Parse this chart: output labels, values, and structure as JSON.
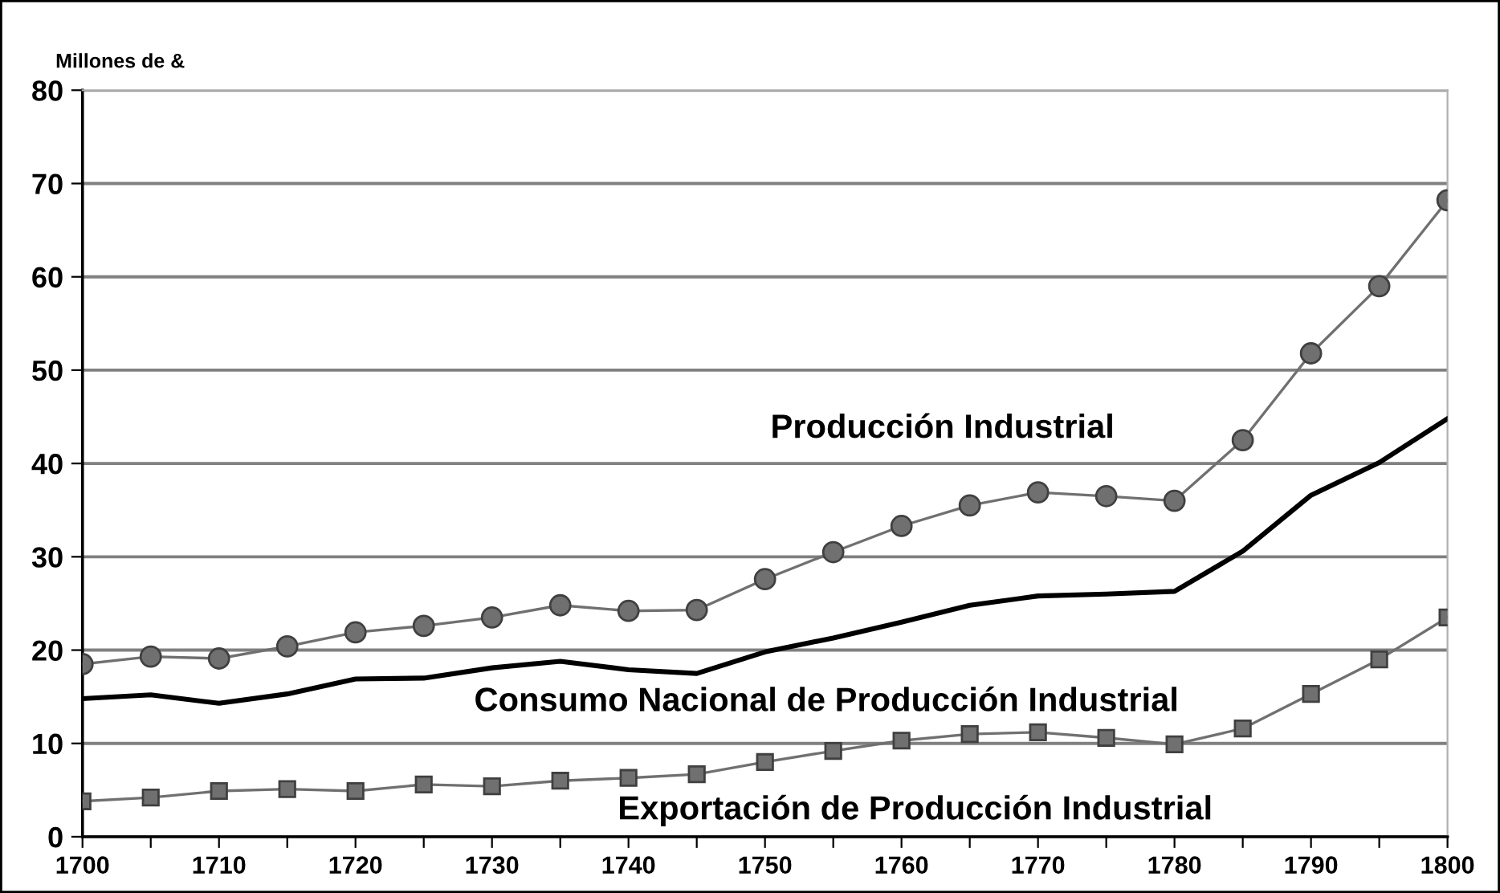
{
  "chart_data": {
    "type": "line",
    "ylabel": "Millones de &",
    "x": [
      1700,
      1705,
      1710,
      1715,
      1720,
      1725,
      1730,
      1735,
      1740,
      1745,
      1750,
      1755,
      1760,
      1765,
      1770,
      1775,
      1780,
      1785,
      1790,
      1795,
      1800
    ],
    "series": [
      {
        "name": "Producción Industrial",
        "color": "#707070",
        "marker": "circle",
        "values": [
          18.5,
          19.3,
          19.1,
          20.4,
          21.9,
          22.6,
          23.5,
          24.8,
          24.2,
          24.3,
          27.6,
          30.5,
          33.3,
          35.5,
          36.9,
          36.5,
          36.0,
          42.5,
          51.8,
          59.0,
          68.2
        ]
      },
      {
        "name": "Consumo Nacional de Producción Industrial",
        "color": "#000000",
        "marker": "none",
        "values": [
          14.8,
          15.2,
          14.3,
          15.3,
          16.9,
          17.0,
          18.1,
          18.8,
          17.9,
          17.5,
          19.8,
          21.3,
          23.0,
          24.8,
          25.8,
          26.0,
          26.3,
          30.6,
          36.6,
          40.1,
          44.8
        ]
      },
      {
        "name": "Exportación de Producción Industrial",
        "color": "#707070",
        "marker": "square",
        "values": [
          3.8,
          4.2,
          4.9,
          5.1,
          4.9,
          5.6,
          5.4,
          6.0,
          6.3,
          6.7,
          8.0,
          9.2,
          10.3,
          11.0,
          11.2,
          10.6,
          9.9,
          11.6,
          15.3,
          19.0,
          23.5
        ]
      }
    ],
    "xlim": [
      1700,
      1800
    ],
    "xticks": [
      1700,
      {
        "value": 1705,
        "label": null
      },
      1710,
      {
        "value": 1715,
        "label": null
      },
      1720,
      {
        "value": 1725,
        "label": null
      },
      1730,
      {
        "value": 1735,
        "label": null
      },
      1740,
      {
        "value": 1745,
        "label": null
      },
      1750,
      {
        "value": 1755,
        "label": null
      },
      1760,
      {
        "value": 1765,
        "label": null
      },
      1770,
      {
        "value": 1775,
        "label": null
      },
      1780,
      {
        "value": 1785,
        "label": null
      },
      1790,
      {
        "value": 1795,
        "label": null
      },
      1800
    ],
    "ylim": [
      0,
      80
    ],
    "yticks": [
      0,
      10,
      20,
      30,
      40,
      50,
      60,
      70,
      80
    ],
    "grid": "y",
    "legend": false
  }
}
